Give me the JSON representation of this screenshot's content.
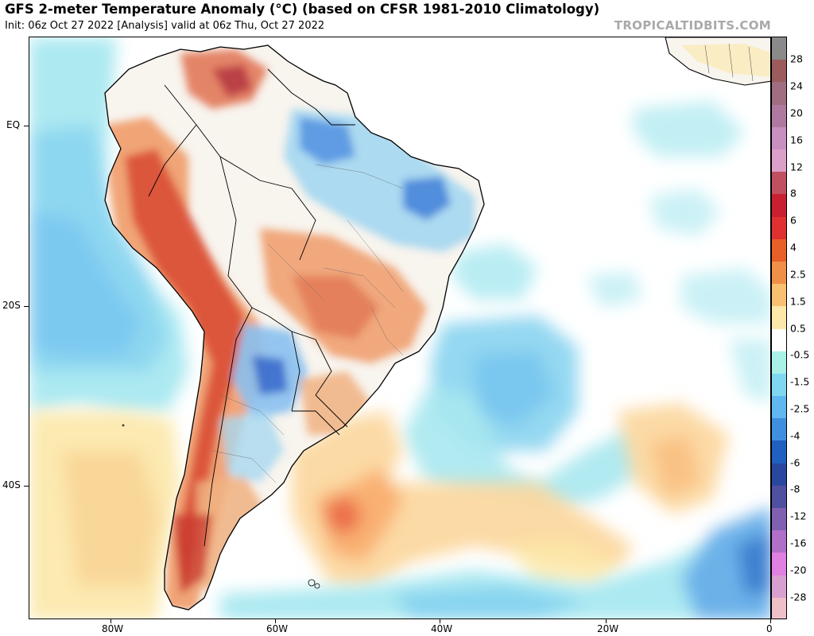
{
  "header": {
    "title": "GFS 2-meter Temperature Anomaly (°C) (based on CFSR 1981-2010 Climatology)",
    "subtitle": "Init: 06z Oct 27 2022  [Analysis]   valid at 06z Thu, Oct 27 2022",
    "watermark": "TROPICALTIDBITS.COM"
  },
  "map": {
    "region": "South America and South Atlantic",
    "lat_labels": [
      "EQ",
      "20S",
      "40S"
    ],
    "lon_labels": [
      "80W",
      "60W",
      "40W",
      "20W",
      "0"
    ],
    "land_color": "#f5f5f0",
    "border_color": "#000000"
  },
  "colorbar": {
    "labels": [
      "28",
      "24",
      "20",
      "16",
      "12",
      "8",
      "6",
      "4",
      "2.5",
      "1.5",
      "0.5",
      "-0.5",
      "-1.5",
      "-2.5",
      "-4",
      "-6",
      "-8",
      "-12",
      "-16",
      "-20",
      "-28"
    ],
    "colors": [
      "#8a8a8a",
      "#9c5c5c",
      "#a06e80",
      "#b07aa0",
      "#c890c0",
      "#dca0c8",
      "#c05060",
      "#c82030",
      "#e03030",
      "#e86028",
      "#f09048",
      "#f8c070",
      "#fce8a8",
      "#ffffff",
      "#a8f0e8",
      "#80d8f0",
      "#60b8f0",
      "#4090e0",
      "#2060c0",
      "#2848a0",
      "#5050a0",
      "#8060b0",
      "#b070c8",
      "#e080e0",
      "#d8a0d0",
      "#f0c0c8"
    ]
  }
}
